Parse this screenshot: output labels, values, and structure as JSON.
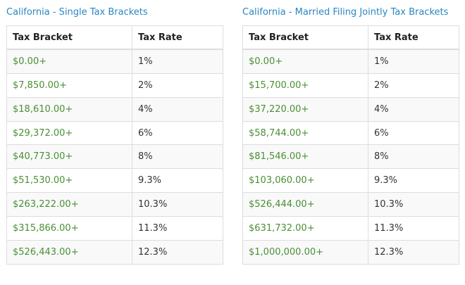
{
  "single": {
    "title": "California - Single Tax Brackets",
    "headers": [
      "Tax Bracket",
      "Tax Rate"
    ],
    "rows": [
      {
        "bracket": "$0.00+",
        "rate": "1%"
      },
      {
        "bracket": "$7,850.00+",
        "rate": "2%"
      },
      {
        "bracket": "$18,610.00+",
        "rate": "4%"
      },
      {
        "bracket": "$29,372.00+",
        "rate": "6%"
      },
      {
        "bracket": "$40,773.00+",
        "rate": "8%"
      },
      {
        "bracket": "$51,530.00+",
        "rate": "9.3%"
      },
      {
        "bracket": "$263,222.00+",
        "rate": "10.3%"
      },
      {
        "bracket": "$315,866.00+",
        "rate": "11.3%"
      },
      {
        "bracket": "$526,443.00+",
        "rate": "12.3%"
      }
    ]
  },
  "married": {
    "title": "California - Married Filing Jointly Tax Brackets",
    "headers": [
      "Tax Bracket",
      "Tax Rate"
    ],
    "rows": [
      {
        "bracket": "$0.00+",
        "rate": "1%"
      },
      {
        "bracket": "$15,700.00+",
        "rate": "2%"
      },
      {
        "bracket": "$37,220.00+",
        "rate": "4%"
      },
      {
        "bracket": "$58,744.00+",
        "rate": "6%"
      },
      {
        "bracket": "$81,546.00+",
        "rate": "8%"
      },
      {
        "bracket": "$103,060.00+",
        "rate": "9.3%"
      },
      {
        "bracket": "$526,444.00+",
        "rate": "10.3%"
      },
      {
        "bracket": "$631,732.00+",
        "rate": "11.3%"
      },
      {
        "bracket": "$1,000,000.00+",
        "rate": "12.3%"
      }
    ]
  },
  "colors": {
    "title": "#2a86c2",
    "bracket_value": "#4a8f33",
    "border": "#dddddd"
  }
}
